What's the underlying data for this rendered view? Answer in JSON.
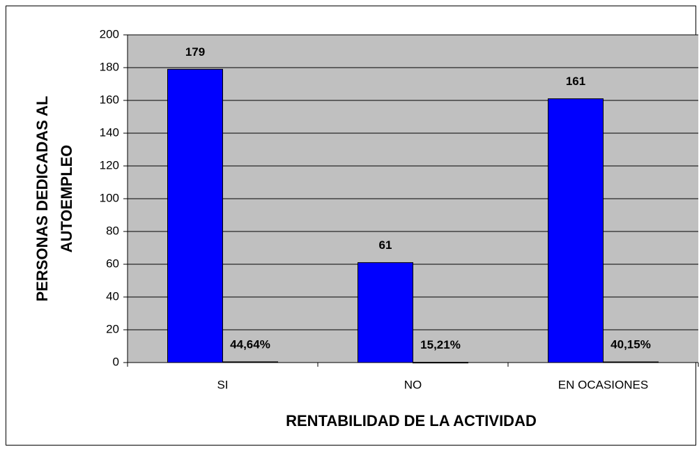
{
  "chart_data": {
    "type": "bar",
    "xlabel": "RENTABILIDAD DE LA ACTIVIDAD",
    "ylabel": [
      "PERSONAS DEDICADAS AL",
      "AUTOEMPLEO"
    ],
    "categories": [
      "SI",
      "NO",
      "EN OCASIONES"
    ],
    "series": [
      {
        "color": "#0000ff",
        "values": [
          179,
          61,
          161
        ]
      },
      {
        "color": "#000000",
        "values": [
          0.4464,
          0.1521,
          0.4015
        ],
        "value_labels": [
          "44,64%",
          "15,21%",
          "40,15%"
        ]
      }
    ],
    "ylim": [
      0,
      200
    ],
    "yticks": [
      0,
      20,
      40,
      60,
      80,
      100,
      120,
      140,
      160,
      180,
      200
    ],
    "grid": true,
    "background": "#c0c0c0"
  }
}
